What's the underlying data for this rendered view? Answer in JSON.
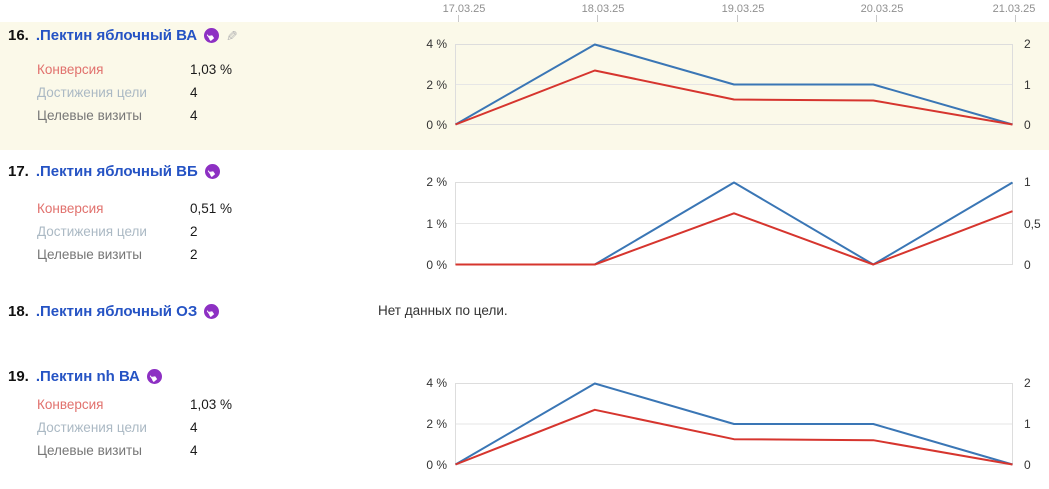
{
  "header": {
    "dates": [
      "17.03.25",
      "18.03.25",
      "19.03.25",
      "20.03.25",
      "21.03.25"
    ]
  },
  "rows": [
    {
      "number": "16.",
      "title": ".Пектин яблочный ВА",
      "icons": {
        "goal": "goal-hand-icon",
        "edit": "edit-pencil-icon"
      },
      "metrics": [
        {
          "label": "Конверсия",
          "value": "1,03 %",
          "color": "#e1716d"
        },
        {
          "label": "Достижения цели",
          "value": "4",
          "color": "#abb9c4"
        },
        {
          "label": "Целевые визиты",
          "value": "4",
          "color": "#767676"
        }
      ]
    },
    {
      "number": "17.",
      "title": ".Пектин яблочный ВБ",
      "icons": {
        "goal": "goal-hand-icon"
      },
      "metrics": [
        {
          "label": "Конверсия",
          "value": "0,51 %",
          "color": "#e1716d"
        },
        {
          "label": "Достижения цели",
          "value": "2",
          "color": "#abb9c4"
        },
        {
          "label": "Целевые визиты",
          "value": "2",
          "color": "#767676"
        }
      ]
    },
    {
      "number": "18.",
      "title": ".Пектин яблочный ОЗ",
      "icons": {
        "goal": "goal-hand-icon"
      },
      "no_data": "Нет данных по цели."
    },
    {
      "number": "19.",
      "title": ".Пектин nh ВА",
      "icons": {
        "goal": "goal-hand-icon"
      },
      "metrics": [
        {
          "label": "Конверсия",
          "value": "1,03 %",
          "color": "#e1716d"
        },
        {
          "label": "Достижения цели",
          "value": "4",
          "color": "#abb9c4"
        },
        {
          "label": "Целевые визиты",
          "value": "4",
          "color": "#767676"
        }
      ]
    }
  ],
  "colors": {
    "row_highlight": "#fbf9e9",
    "title_link": "#2553c4",
    "goal_badge": "#8d30c3",
    "line_blue": "#3a76b5",
    "line_red": "#d6352e",
    "grid": "#dddddd",
    "date_label": "#8f8f8f"
  },
  "chart_data": [
    {
      "type": "line",
      "row": "16",
      "x": [
        "17.03.25",
        "18.03.25",
        "19.03.25",
        "20.03.25",
        "21.03.25"
      ],
      "left_axis": {
        "labels": [
          "4 %",
          "2 %",
          "0 %"
        ],
        "max_pct": 4
      },
      "right_axis": {
        "labels": [
          "2",
          "1",
          "0"
        ],
        "max": 2
      },
      "grid": "horizontal",
      "legend": "none",
      "series": [
        {
          "name": "Достижения цели",
          "axis": "right",
          "color": "#3a76b5",
          "values": [
            0,
            2,
            1,
            1,
            0
          ],
          "values_pct": [
            0,
            4,
            2,
            2,
            0
          ]
        },
        {
          "name": "Конверсия",
          "axis": "left",
          "color": "#d6352e",
          "values_pct": [
            0,
            2.7,
            1.25,
            1.2,
            0
          ]
        }
      ]
    },
    {
      "type": "line",
      "row": "17",
      "x": [
        "17.03.25",
        "18.03.25",
        "19.03.25",
        "20.03.25",
        "21.03.25"
      ],
      "left_axis": {
        "labels": [
          "2 %",
          "1 %",
          "0 %"
        ],
        "max_pct": 2
      },
      "right_axis": {
        "labels": [
          "1",
          "0,5",
          "0"
        ],
        "max": 1
      },
      "grid": "horizontal",
      "legend": "none",
      "series": [
        {
          "name": "Достижения цели",
          "axis": "right",
          "color": "#3a76b5",
          "values": [
            0,
            0,
            1,
            0,
            1
          ],
          "values_pct": [
            0,
            0,
            2,
            0,
            2
          ]
        },
        {
          "name": "Конверсия",
          "axis": "left",
          "color": "#d6352e",
          "values_pct": [
            0,
            0,
            1.25,
            0,
            1.3
          ]
        }
      ]
    },
    {
      "type": "line",
      "row": "19",
      "x": [
        "17.03.25",
        "18.03.25",
        "19.03.25",
        "20.03.25",
        "21.03.25"
      ],
      "left_axis": {
        "labels": [
          "4 %",
          "2 %",
          "0 %"
        ],
        "max_pct": 4
      },
      "right_axis": {
        "labels": [
          "2",
          "1",
          "0"
        ],
        "max": 2
      },
      "grid": "horizontal",
      "legend": "none",
      "series": [
        {
          "name": "Достижения цели",
          "axis": "right",
          "color": "#3a76b5",
          "values": [
            0,
            2,
            1,
            1,
            0
          ],
          "values_pct": [
            0,
            4,
            2,
            2,
            0
          ]
        },
        {
          "name": "Конверсия",
          "axis": "left",
          "color": "#d6352e",
          "values_pct": [
            0,
            2.7,
            1.25,
            1.2,
            0
          ]
        }
      ]
    }
  ]
}
